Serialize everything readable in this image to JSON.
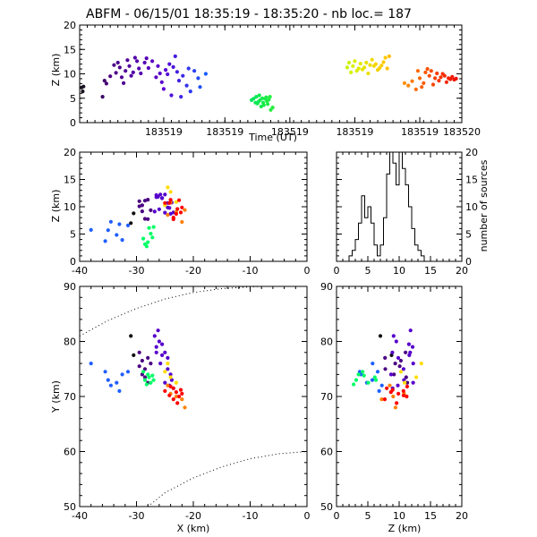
{
  "header": {
    "title": "ABFM - 06/15/01 18:35:19 - 18:35:20 - nb loc.=     187"
  },
  "chart_data": [
    {
      "panel": "time-altitude",
      "type": "scatter",
      "xlabel": "Time (UT)",
      "ylabel": "Z (km)",
      "x_tick_labels": [
        "183519",
        "183519",
        "183519",
        "183519",
        "183519",
        "183520"
      ],
      "y_ticks": [
        0,
        5,
        10,
        15,
        20
      ],
      "ylim": [
        0,
        20
      ],
      "x_range_fraction": [
        0,
        1
      ],
      "color_by_time": true,
      "points_xfrac_z": [
        [
          0.005,
          7.2
        ],
        [
          0.008,
          6.4
        ],
        [
          0.01,
          7.4
        ],
        [
          0.06,
          5.3
        ],
        [
          0.065,
          8.6
        ],
        [
          0.07,
          8.0
        ],
        [
          0.08,
          9.5
        ],
        [
          0.09,
          11.8
        ],
        [
          0.095,
          10.2
        ],
        [
          0.1,
          12.3
        ],
        [
          0.105,
          11.3
        ],
        [
          0.11,
          9.3
        ],
        [
          0.115,
          8.1
        ],
        [
          0.12,
          10.6
        ],
        [
          0.125,
          12.8
        ],
        [
          0.13,
          11.6
        ],
        [
          0.135,
          9.6
        ],
        [
          0.14,
          10.3
        ],
        [
          0.145,
          13.3
        ],
        [
          0.15,
          12.6
        ],
        [
          0.155,
          11.1
        ],
        [
          0.16,
          10.1
        ],
        [
          0.17,
          12.3
        ],
        [
          0.175,
          13.2
        ],
        [
          0.18,
          11.2
        ],
        [
          0.19,
          12.6
        ],
        [
          0.2,
          9.3
        ],
        [
          0.205,
          11.6
        ],
        [
          0.21,
          10.1
        ],
        [
          0.215,
          8.3
        ],
        [
          0.22,
          6.9
        ],
        [
          0.225,
          10.8
        ],
        [
          0.23,
          9.9
        ],
        [
          0.235,
          12.0
        ],
        [
          0.24,
          5.6
        ],
        [
          0.245,
          11.4
        ],
        [
          0.25,
          13.6
        ],
        [
          0.255,
          10.4
        ],
        [
          0.26,
          8.6
        ],
        [
          0.265,
          5.3
        ],
        [
          0.27,
          9.6
        ],
        [
          0.28,
          7.6
        ],
        [
          0.285,
          11.1
        ],
        [
          0.29,
          6.4
        ],
        [
          0.3,
          10.6
        ],
        [
          0.31,
          9.1
        ],
        [
          0.315,
          7.3
        ],
        [
          0.33,
          10.0
        ],
        [
          0.45,
          4.6
        ],
        [
          0.455,
          4.9
        ],
        [
          0.46,
          4.1
        ],
        [
          0.462,
          5.3
        ],
        [
          0.465,
          3.9
        ],
        [
          0.468,
          4.3
        ],
        [
          0.47,
          5.6
        ],
        [
          0.472,
          4.6
        ],
        [
          0.475,
          3.3
        ],
        [
          0.478,
          5.0
        ],
        [
          0.48,
          4.1
        ],
        [
          0.482,
          3.6
        ],
        [
          0.485,
          4.9
        ],
        [
          0.488,
          5.2
        ],
        [
          0.49,
          4.4
        ],
        [
          0.492,
          3.8
        ],
        [
          0.495,
          4.7
        ],
        [
          0.498,
          5.3
        ],
        [
          0.5,
          2.6
        ],
        [
          0.505,
          3.1
        ],
        [
          0.7,
          11.3
        ],
        [
          0.705,
          12.3
        ],
        [
          0.71,
          10.3
        ],
        [
          0.715,
          11.6
        ],
        [
          0.72,
          12.6
        ],
        [
          0.725,
          10.6
        ],
        [
          0.73,
          11.1
        ],
        [
          0.735,
          12.1
        ],
        [
          0.74,
          10.9
        ],
        [
          0.745,
          11.3
        ],
        [
          0.75,
          12.3
        ],
        [
          0.755,
          10.1
        ],
        [
          0.76,
          11.8
        ],
        [
          0.765,
          12.9
        ],
        [
          0.77,
          11.6
        ],
        [
          0.775,
          12.0
        ],
        [
          0.78,
          10.8
        ],
        [
          0.785,
          11.2
        ],
        [
          0.79,
          11.7
        ],
        [
          0.795,
          12.4
        ],
        [
          0.8,
          13.3
        ],
        [
          0.805,
          11.1
        ],
        [
          0.81,
          13.6
        ],
        [
          0.85,
          8.1
        ],
        [
          0.86,
          7.6
        ],
        [
          0.87,
          8.5
        ],
        [
          0.88,
          6.8
        ],
        [
          0.885,
          10.6
        ],
        [
          0.89,
          9.1
        ],
        [
          0.895,
          7.3
        ],
        [
          0.9,
          8.1
        ],
        [
          0.905,
          10.3
        ],
        [
          0.91,
          11.0
        ],
        [
          0.915,
          9.6
        ],
        [
          0.92,
          10.6
        ],
        [
          0.925,
          7.8
        ],
        [
          0.93,
          9.1
        ],
        [
          0.935,
          10.1
        ],
        [
          0.94,
          8.6
        ],
        [
          0.945,
          9.3
        ],
        [
          0.95,
          10.0
        ],
        [
          0.955,
          9.6
        ],
        [
          0.96,
          8.3
        ],
        [
          0.965,
          9.1
        ],
        [
          0.97,
          8.9
        ],
        [
          0.975,
          9.4
        ],
        [
          0.98,
          8.8
        ],
        [
          0.985,
          9.0
        ]
      ]
    },
    {
      "panel": "x-z",
      "type": "scatter",
      "ylabel": "Z (km)",
      "xlim": [
        -40,
        0
      ],
      "x_ticks": [
        -40,
        -30,
        -20,
        -10,
        0
      ],
      "ylim": [
        0,
        20
      ],
      "y_ticks": [
        0,
        5,
        10,
        15,
        20
      ]
    },
    {
      "panel": "altitude-histogram",
      "type": "bar",
      "ylabel": "number of sources",
      "xlim": [
        0,
        20
      ],
      "x_ticks": [
        0,
        5,
        10,
        15,
        20
      ],
      "ylim": [
        0,
        20
      ],
      "y_ticks": [
        0,
        5,
        10,
        15,
        20
      ],
      "bin_width": 0.5,
      "bin_starts": [
        2.0,
        2.5,
        3.0,
        3.5,
        4.0,
        4.5,
        5.0,
        5.5,
        6.0,
        6.5,
        7.0,
        7.5,
        8.0,
        8.5,
        9.0,
        9.5,
        10.0,
        10.5,
        11.0,
        11.5,
        12.0,
        12.5,
        13.0,
        13.5,
        14.0
      ],
      "counts": [
        1,
        2,
        4,
        7,
        12,
        8,
        10,
        7,
        3,
        1,
        3,
        8,
        16,
        20,
        18,
        14,
        20,
        17,
        14,
        10,
        6,
        3,
        2,
        1,
        0
      ]
    },
    {
      "panel": "x-y",
      "type": "scatter",
      "xlabel": "X (km)",
      "ylabel": "Y (km)",
      "xlim": [
        -40,
        0
      ],
      "x_ticks": [
        -40,
        -30,
        -20,
        -10,
        0
      ],
      "ylim": [
        50,
        90
      ],
      "y_ticks": [
        50,
        60,
        70,
        80,
        90
      ],
      "groups": [
        {
          "color": "#111111",
          "points": [
            [
              -31,
              81
            ],
            [
              -30.5,
              77.5
            ]
          ]
        },
        {
          "color": "#4b0082",
          "points": [
            [
              -29.5,
              78
            ],
            [
              -29,
              76.5
            ],
            [
              -28.5,
              75
            ],
            [
              -29,
              74
            ],
            [
              -28,
              72.5
            ],
            [
              -27.5,
              76
            ],
            [
              -28,
              77
            ],
            [
              -29.5,
              75.5
            ],
            [
              -28.5,
              73.5
            ]
          ]
        },
        {
          "color": "#5500cc",
          "points": [
            [
              -26.5,
              79
            ],
            [
              -26,
              80
            ],
            [
              -26.8,
              81
            ],
            [
              -26.2,
              82
            ],
            [
              -25.5,
              79.5
            ],
            [
              -25,
              78
            ],
            [
              -24.5,
              77
            ],
            [
              -25.8,
              76
            ],
            [
              -24.5,
              75
            ],
            [
              -24,
              74
            ],
            [
              -23.8,
              73
            ],
            [
              -25,
              72.5
            ],
            [
              -24.2,
              72
            ],
            [
              -23.5,
              71.5
            ],
            [
              -25.5,
              77.5
            ],
            [
              -26.5,
              78
            ]
          ]
        },
        {
          "color": "#1f5fff",
          "points": [
            [
              -38,
              76
            ],
            [
              -35.5,
              74.5
            ],
            [
              -35,
              73
            ],
            [
              -34.5,
              72
            ],
            [
              -33.5,
              72.5
            ],
            [
              -32.5,
              74
            ],
            [
              -31.5,
              74.5
            ],
            [
              -33,
              71
            ]
          ]
        },
        {
          "color": "#00ff66",
          "points": [
            [
              -28.5,
              73
            ],
            [
              -28,
              74
            ],
            [
              -27.8,
              73.5
            ],
            [
              -27.5,
              72.5
            ],
            [
              -28.2,
              72.2
            ],
            [
              -27.2,
              73.8
            ],
            [
              -27,
              73
            ],
            [
              -28.8,
              74.5
            ]
          ]
        },
        {
          "color": "#ffdd00",
          "points": [
            [
              -25,
              74.5
            ],
            [
              -24,
              73.5
            ],
            [
              -24.5,
              76
            ],
            [
              -23,
              72.5
            ]
          ]
        },
        {
          "color": "#ff7f00",
          "points": [
            [
              -24.5,
              72
            ],
            [
              -24,
              70.5
            ],
            [
              -23,
              70
            ],
            [
              -22,
              69.5
            ],
            [
              -21.5,
              68
            ]
          ]
        },
        {
          "color": "#ff0000",
          "points": [
            [
              -25,
              71
            ],
            [
              -24.2,
              70.2
            ],
            [
              -23.5,
              71.5
            ],
            [
              -23,
              70.8
            ],
            [
              -22.5,
              70
            ],
            [
              -22,
              70.5
            ],
            [
              -23.5,
              69.5
            ],
            [
              -22.8,
              68.8
            ],
            [
              -24,
              71.8
            ],
            [
              -22.2,
              71.2
            ]
          ]
        }
      ],
      "dotted_curves": [
        {
          "points": [
            [
              -40,
              81
            ],
            [
              -35,
              83.8
            ],
            [
              -30,
              86
            ],
            [
              -25,
              87.7
            ],
            [
              -20,
              88.9
            ],
            [
              -15,
              89.6
            ],
            [
              -10,
              89.9
            ],
            [
              -8,
              90
            ]
          ]
        },
        {
          "points": [
            [
              -28,
              50
            ],
            [
              -25,
              52.5
            ],
            [
              -20,
              55.2
            ],
            [
              -15,
              57.2
            ],
            [
              -10,
              58.7
            ],
            [
              -5,
              59.6
            ],
            [
              0,
              60
            ]
          ]
        }
      ]
    },
    {
      "panel": "z-y",
      "type": "scatter",
      "xlabel": "Z (km)",
      "xlim": [
        0,
        20
      ],
      "x_ticks": [
        0,
        5,
        10,
        15,
        20
      ],
      "ylim": [
        50,
        90
      ],
      "y_ticks": [
        50,
        60,
        70,
        80,
        90
      ]
    }
  ]
}
